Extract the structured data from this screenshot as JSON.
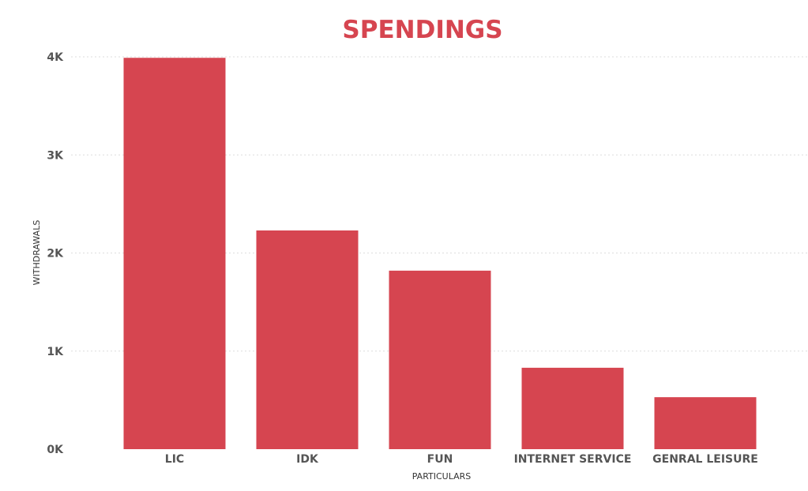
{
  "chart_data": {
    "type": "bar",
    "title": "SPENDINGS",
    "xlabel": "PARTICULARS",
    "ylabel": "WITHDRAWALS",
    "categories": [
      "LIC",
      "IDK",
      "FUN",
      "INTERNET SERVICE",
      "GENRAL LEISURE"
    ],
    "values": [
      3990,
      2230,
      1820,
      830,
      530
    ],
    "ylim": [
      0,
      4000
    ],
    "yticks": [
      0,
      1000,
      2000,
      3000,
      4000
    ],
    "ytick_labels": [
      "0K",
      "1K",
      "2K",
      "3K",
      "4K"
    ],
    "grid": true,
    "legend": "none",
    "colors": {
      "bar": "#D64550",
      "title": "#D64550",
      "grid": "#dddddd"
    }
  }
}
